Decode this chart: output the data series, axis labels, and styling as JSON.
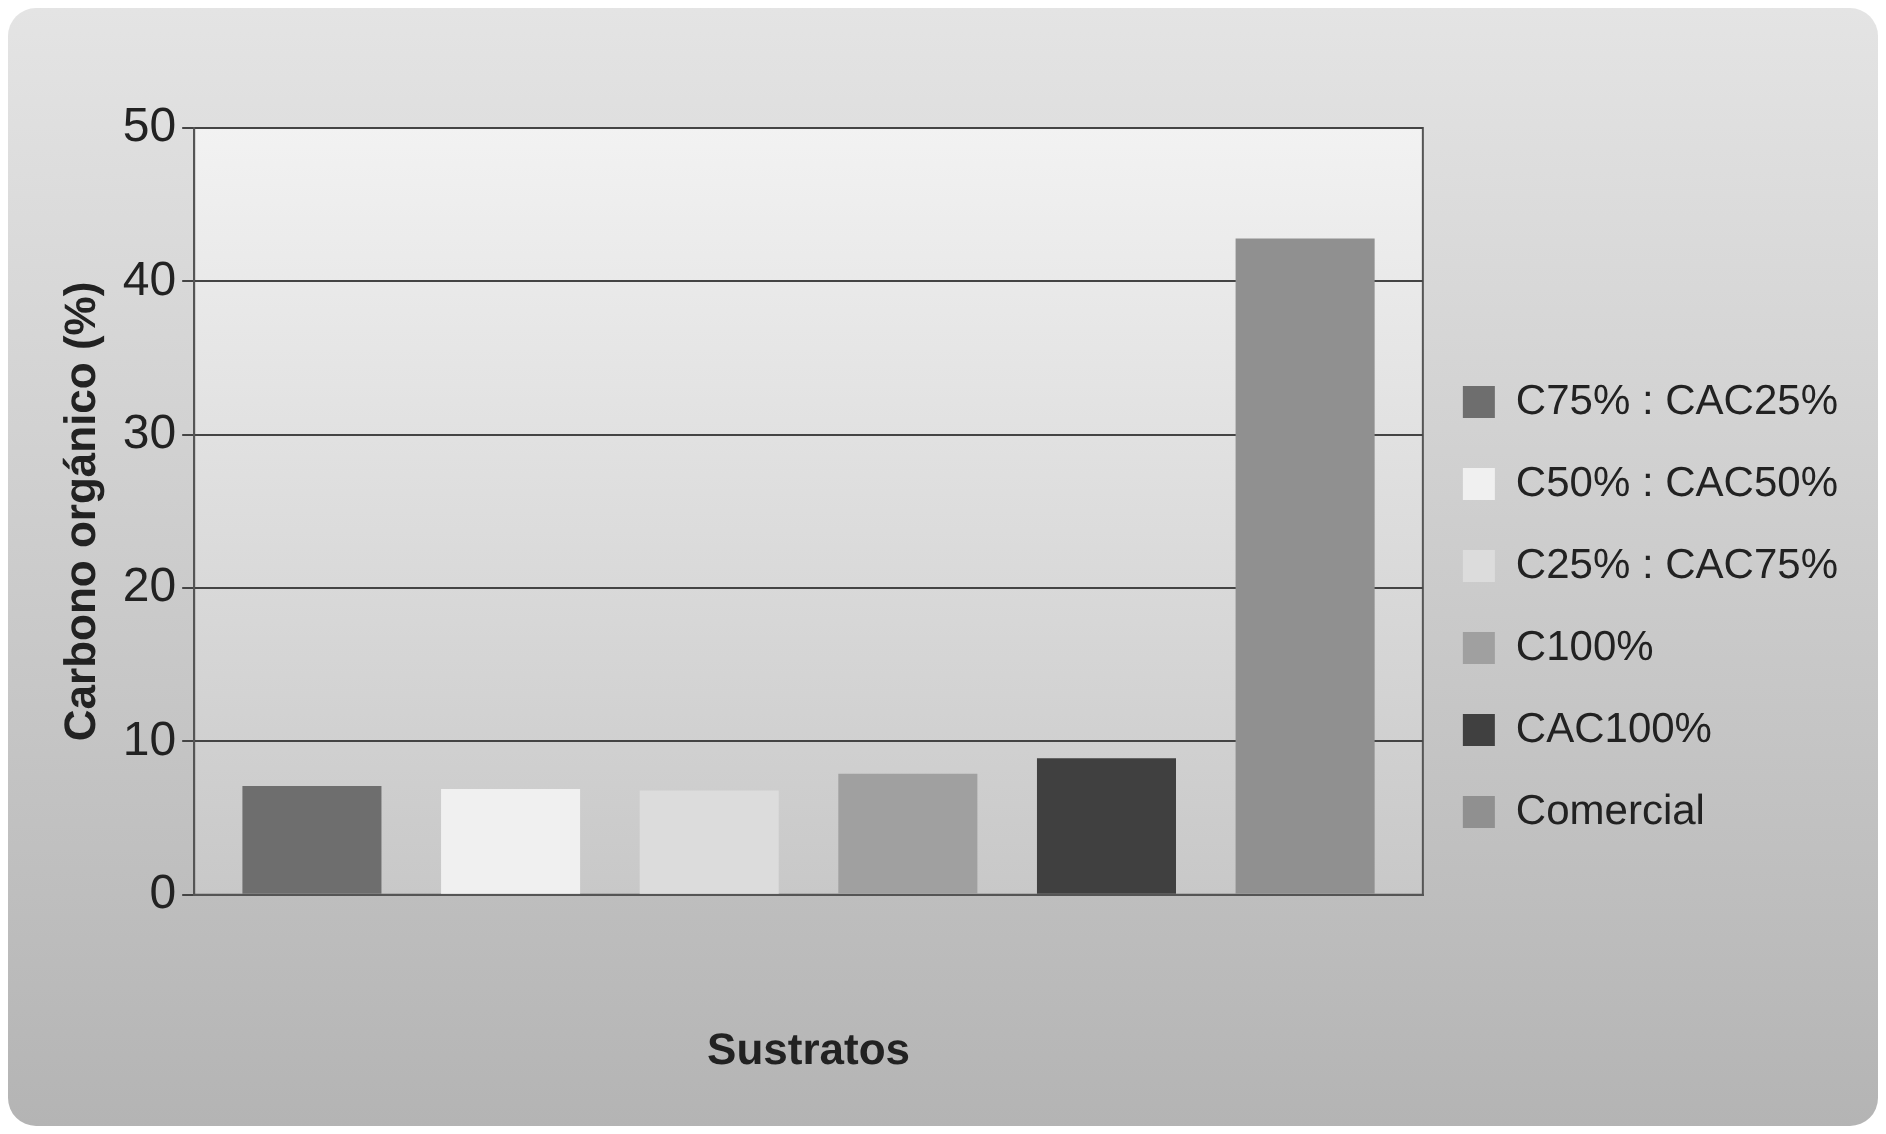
{
  "chart_data": {
    "type": "bar",
    "xlabel": "Sustratos",
    "ylabel": "Carbono orgánico (%)",
    "categories": [
      null
    ],
    "series": [
      {
        "name": "C75% : CAC25%",
        "color": "#6e6e6e",
        "values": [
          7.1
        ]
      },
      {
        "name": "C50% : CAC50%",
        "color": "#f0f0f0",
        "values": [
          6.9
        ]
      },
      {
        "name": "C25% : CAC75%",
        "color": "#dcdcdc",
        "values": [
          6.8
        ]
      },
      {
        "name": "C100%",
        "color": "#a0a0a0",
        "values": [
          7.9
        ]
      },
      {
        "name": "CAC100%",
        "color": "#404040",
        "values": [
          8.9
        ]
      },
      {
        "name": "Comercial",
        "color": "#909090",
        "values": [
          42.8
        ]
      }
    ],
    "ylim": [
      0,
      50
    ],
    "yticks": [
      0,
      10,
      20,
      30,
      40,
      50
    ],
    "grid": "y",
    "legend": "right"
  }
}
